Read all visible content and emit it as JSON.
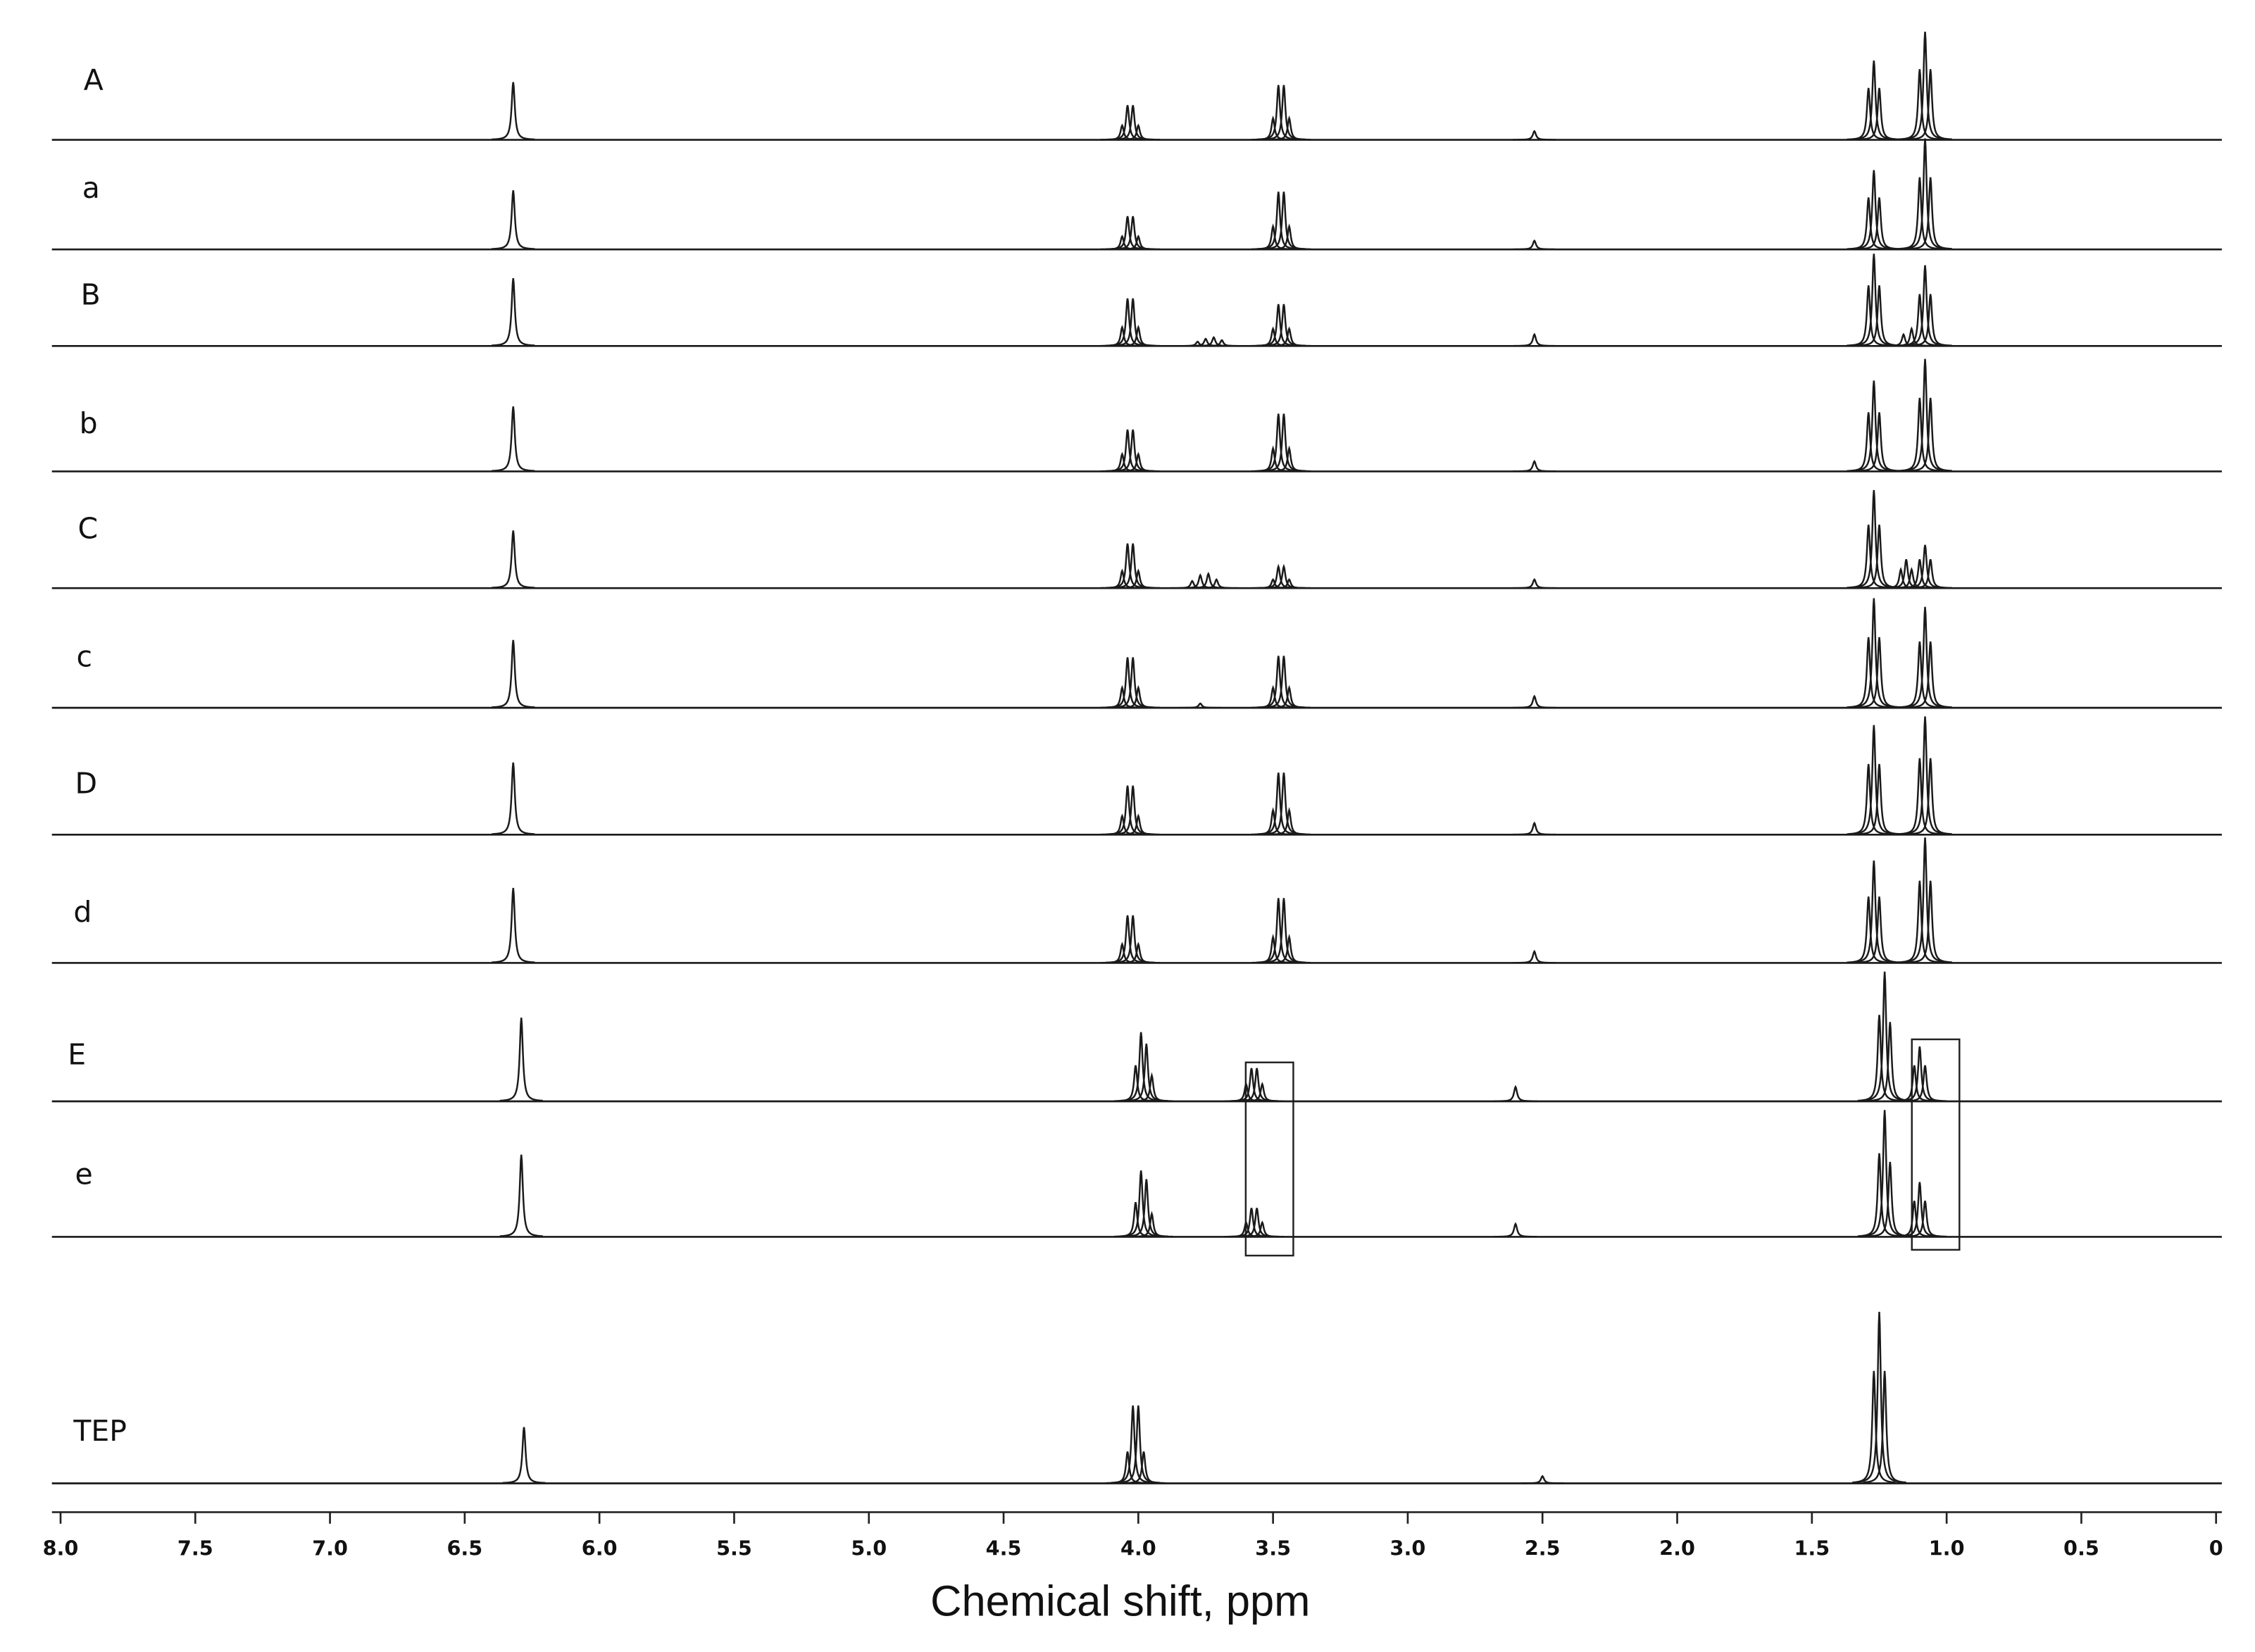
{
  "chart_data": {
    "type": "nmr-stack",
    "x_label": "Chemical shift, ppm",
    "xlim": [
      8,
      0
    ],
    "xticks": [
      {
        "value": 8,
        "label": "8.0"
      },
      7.5,
      {
        "value": 7,
        "label": "7.0"
      },
      6.5,
      {
        "value": 6,
        "label": "6.0"
      },
      5.5,
      {
        "value": 5,
        "label": "5.0"
      },
      4.5,
      {
        "value": 4,
        "label": "4.0"
      },
      3.5,
      {
        "value": 3,
        "label": "3.0"
      },
      2.5,
      {
        "value": 2,
        "label": "2.0"
      },
      1.5,
      {
        "value": 1,
        "label": "1.0"
      },
      0.5,
      0
    ],
    "color": "#1a1a1a",
    "series": [
      {
        "name": "A",
        "x": [
          6.32,
          4.06,
          4.04,
          4.02,
          4.0,
          3.5,
          3.48,
          3.46,
          3.44,
          2.53,
          1.29,
          1.27,
          1.25,
          1.1,
          1.08,
          1.06
        ],
        "values": [
          40,
          10,
          24,
          24,
          10,
          15,
          38,
          38,
          15,
          6,
          36,
          55,
          36,
          49,
          75,
          49
        ]
      },
      {
        "name": "a",
        "x": [
          6.32,
          4.06,
          4.04,
          4.02,
          4.0,
          3.5,
          3.48,
          3.46,
          3.44,
          2.53,
          1.29,
          1.27,
          1.25,
          1.1,
          1.08,
          1.06
        ],
        "values": [
          41,
          9,
          23,
          23,
          9,
          16,
          40,
          40,
          16,
          6,
          36,
          55,
          36,
          50,
          77,
          50
        ]
      },
      {
        "name": "B",
        "x": [
          6.32,
          4.06,
          4.04,
          4.02,
          4.0,
          3.78,
          3.75,
          3.72,
          3.69,
          3.5,
          3.48,
          3.46,
          3.44,
          2.53,
          1.29,
          1.27,
          1.25,
          1.16,
          1.13,
          1.1,
          1.08,
          1.06
        ],
        "values": [
          47,
          13,
          33,
          33,
          13,
          3,
          5,
          6,
          4,
          12,
          29,
          29,
          12,
          8,
          42,
          64,
          42,
          8,
          12,
          36,
          56,
          36
        ]
      },
      {
        "name": "b",
        "x": [
          6.32,
          4.06,
          4.04,
          4.02,
          4.0,
          3.5,
          3.48,
          3.46,
          3.44,
          2.53,
          1.29,
          1.27,
          1.25,
          1.1,
          1.08,
          1.06
        ],
        "values": [
          45,
          12,
          29,
          29,
          12,
          16,
          40,
          40,
          16,
          7,
          41,
          63,
          41,
          51,
          78,
          51
        ]
      },
      {
        "name": "C",
        "x": [
          6.32,
          4.06,
          4.04,
          4.02,
          4.0,
          3.8,
          3.77,
          3.74,
          3.71,
          3.5,
          3.48,
          3.46,
          3.44,
          2.53,
          1.29,
          1.27,
          1.25,
          1.17,
          1.15,
          1.13,
          1.1,
          1.08,
          1.06
        ],
        "values": [
          40,
          12,
          31,
          31,
          12,
          5,
          9,
          10,
          6,
          6,
          15,
          15,
          6,
          6,
          44,
          68,
          44,
          13,
          20,
          13,
          20,
          30,
          20
        ]
      },
      {
        "name": "c",
        "x": [
          6.32,
          4.06,
          4.04,
          4.02,
          4.0,
          3.77,
          3.5,
          3.48,
          3.46,
          3.44,
          2.53,
          1.29,
          1.27,
          1.25,
          1.1,
          1.08,
          1.06
        ],
        "values": [
          47,
          14,
          35,
          35,
          14,
          3,
          14,
          36,
          36,
          14,
          8,
          49,
          76,
          49,
          46,
          70,
          46
        ]
      },
      {
        "name": "D",
        "x": [
          6.32,
          4.06,
          4.04,
          4.02,
          4.0,
          3.5,
          3.48,
          3.46,
          3.44,
          2.53,
          1.29,
          1.27,
          1.25,
          1.1,
          1.08,
          1.06
        ],
        "values": [
          50,
          13,
          34,
          34,
          13,
          17,
          43,
          43,
          17,
          8,
          49,
          76,
          49,
          53,
          82,
          53
        ]
      },
      {
        "name": "d",
        "x": [
          6.32,
          4.06,
          4.04,
          4.02,
          4.0,
          3.5,
          3.48,
          3.46,
          3.44,
          2.53,
          1.29,
          1.27,
          1.25,
          1.1,
          1.08,
          1.06
        ],
        "values": [
          52,
          13,
          33,
          33,
          13,
          18,
          45,
          45,
          18,
          8,
          46,
          71,
          46,
          57,
          87,
          57
        ]
      },
      {
        "name": "E",
        "x": [
          6.29,
          4.01,
          3.99,
          3.97,
          3.95,
          3.6,
          3.58,
          3.56,
          3.54,
          2.6,
          1.25,
          1.23,
          1.21,
          1.12,
          1.1,
          1.08
        ],
        "values": [
          58,
          25,
          48,
          40,
          18,
          12,
          23,
          23,
          12,
          10,
          60,
          90,
          55,
          25,
          38,
          25
        ]
      },
      {
        "name": "e",
        "x": [
          6.29,
          4.01,
          3.99,
          3.97,
          3.95,
          3.6,
          3.58,
          3.56,
          3.54,
          2.6,
          1.25,
          1.23,
          1.21,
          1.12,
          1.1,
          1.08
        ],
        "values": [
          57,
          24,
          46,
          40,
          16,
          10,
          20,
          20,
          10,
          9,
          58,
          88,
          52,
          25,
          38,
          25
        ]
      },
      {
        "name": "TEP",
        "x": [
          6.28,
          4.04,
          4.02,
          4.0,
          3.98,
          2.5,
          1.27,
          1.25,
          1.23
        ],
        "values": [
          39,
          22,
          54,
          54,
          22,
          5,
          78,
          119,
          78
        ]
      }
    ]
  }
}
